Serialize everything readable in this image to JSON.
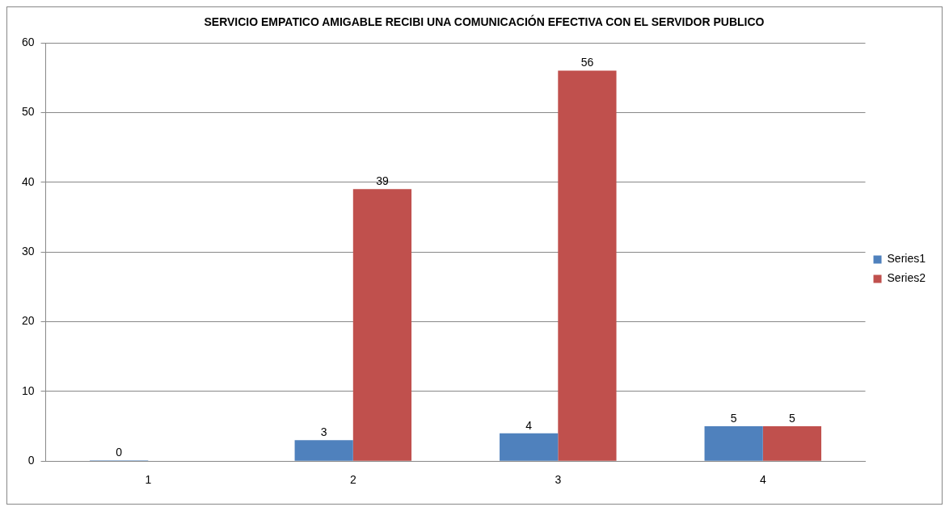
{
  "chart_data": {
    "type": "bar",
    "title": "SERVICIO EMPATICO AMIGABLE RECIBI UNA COMUNICACIÓN EFECTIVA CON EL SERVIDOR PUBLICO",
    "categories": [
      "1",
      "2",
      "3",
      "4"
    ],
    "series": [
      {
        "name": "Series1",
        "color": "#4f81bd",
        "values": [
          0,
          3,
          4,
          5
        ]
      },
      {
        "name": "Series2",
        "color": "#c0504d",
        "values": [
          null,
          39,
          56,
          5
        ]
      }
    ],
    "ylim": [
      0,
      60
    ],
    "yticks": [
      0,
      10,
      20,
      30,
      40,
      50,
      60
    ],
    "grid": "y",
    "legend": "right",
    "data_labels": true
  }
}
